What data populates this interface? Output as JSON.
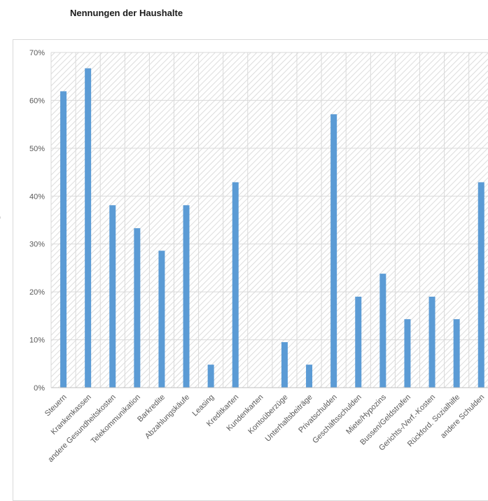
{
  "title": "Nennungen der Haushalte",
  "edge_fragment": ")",
  "chart_data": {
    "type": "bar",
    "title": "",
    "xlabel": "",
    "ylabel": "",
    "categories": [
      "Steuern",
      "Krankenkassen",
      "andere Gesundheitskosten",
      "Telekommunikation",
      "Barkredite",
      "Abzahlungskäufe",
      "Leasing",
      "Kreditkarten",
      "Kundenkarten",
      "Kontoüberzüge",
      "Unterhaltsbeiträge",
      "Privatschulden",
      "Geschäftsschulden",
      "Miete/Hypozins",
      "Bussen/Geldstrafen",
      "Gerichts-/Verf.-Kosten",
      "Rückford. Sozialhilfe",
      "andere Schulden"
    ],
    "values": [
      61.9,
      66.7,
      38.1,
      33.3,
      28.6,
      38.1,
      4.8,
      42.9,
      0,
      9.5,
      4.8,
      57.1,
      19.0,
      23.8,
      14.3,
      19.0,
      14.3,
      42.9
    ],
    "ylim": [
      0,
      70
    ],
    "yticks": [
      0,
      10,
      20,
      30,
      40,
      50,
      60,
      70
    ],
    "ytick_labels": [
      "0%",
      "10%",
      "20%",
      "30%",
      "40%",
      "50%",
      "60%",
      "70%"
    ],
    "grid": true,
    "legend": "none",
    "bar_color": "#5b9bd5"
  }
}
